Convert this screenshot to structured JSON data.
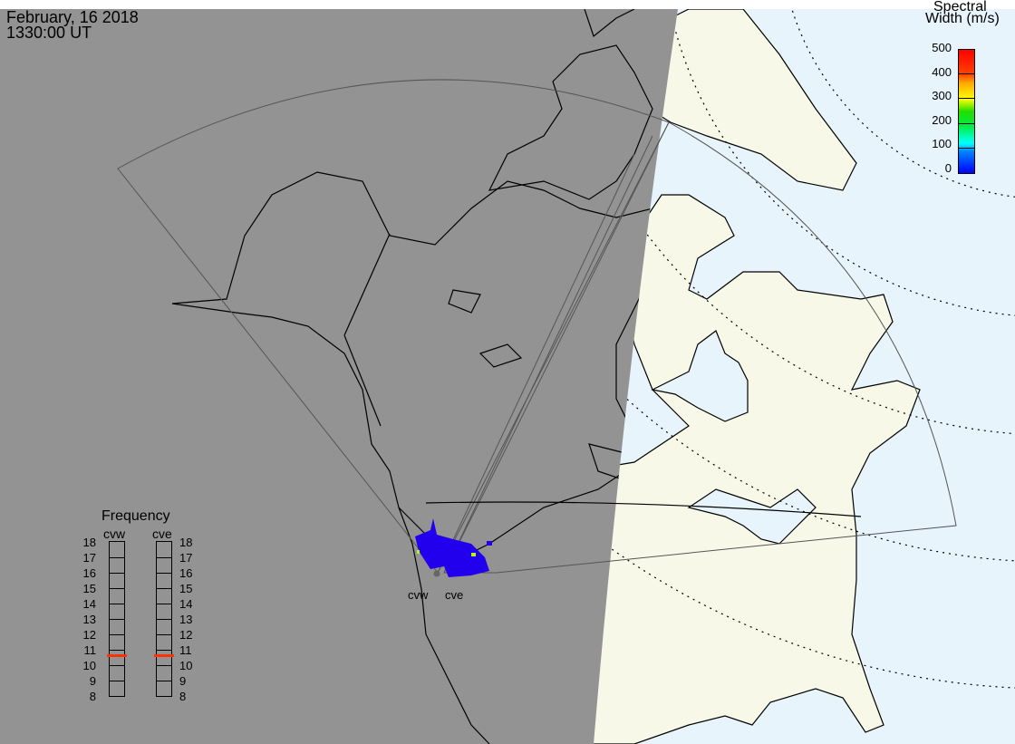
{
  "header": {
    "date": "February, 16 2018",
    "time": "1330:00 UT"
  },
  "colorbar": {
    "title_line1": "Spectral",
    "title_line2": "Width (m/s)",
    "ticks": [
      "500",
      "400",
      "300",
      "200",
      "100",
      "0"
    ],
    "colors": [
      "#ff0000",
      "#ff8800",
      "#ffff00",
      "#22cc00",
      "#00ff88",
      "#00ffff",
      "#0088ff",
      "#0000ff"
    ],
    "range": [
      0,
      500
    ]
  },
  "frequency": {
    "title": "Frequency",
    "radars": [
      {
        "name": "cvw",
        "value_mhz": 10.6
      },
      {
        "name": "cve",
        "value_mhz": 10.6
      }
    ],
    "ticks": [
      "18",
      "17",
      "16",
      "15",
      "14",
      "13",
      "12",
      "11",
      "10",
      "9",
      "8"
    ],
    "range_mhz": [
      8,
      18
    ],
    "marker_color": "#ff3300"
  },
  "sites": [
    {
      "name": "cvw"
    },
    {
      "name": "cve"
    }
  ],
  "colors": {
    "night": "#939393",
    "day_land": "#f8f8e8",
    "day_ocean": "#e8f4fc",
    "scatter": "#2200ee"
  }
}
